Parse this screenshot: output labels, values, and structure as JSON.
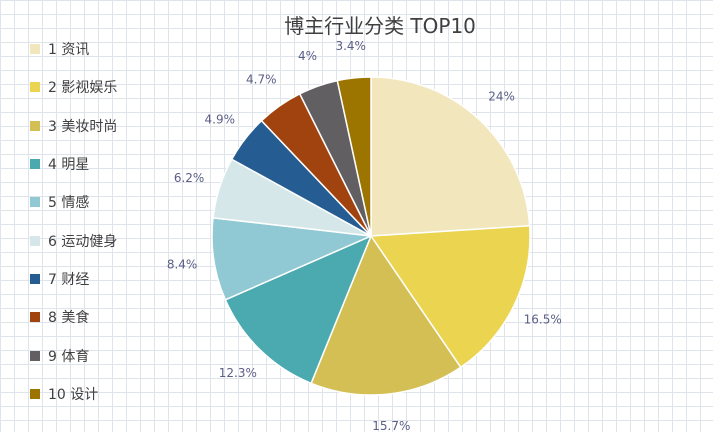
{
  "chart_data": {
    "type": "pie",
    "title": "博主行业分类 TOP10",
    "categories": [
      "1 资讯",
      "2 影视娱乐",
      "3 美妆时尚",
      "4 明星",
      "5 情感",
      "6 运动健身",
      "7 财经",
      "8 美食",
      "9 体育",
      "10 设计"
    ],
    "values": [
      24,
      16.5,
      15.7,
      12.3,
      8.4,
      6.2,
      4.9,
      4.7,
      4,
      3.4
    ],
    "value_labels": [
      "24%",
      "16.5%",
      "15.7%",
      "12.3%",
      "8.4%",
      "6.2%",
      "4.9%",
      "4.7%",
      "4%",
      "3.4%"
    ],
    "colors": [
      "#f2e6bd",
      "#ead450",
      "#d4bf55",
      "#4aaab0",
      "#90c8d3",
      "#d5e7e8",
      "#255c91",
      "#a1430e",
      "#625f63",
      "#9c7500"
    ],
    "legend_position": "left",
    "start_angle": "12 o'clock, clockwise"
  }
}
